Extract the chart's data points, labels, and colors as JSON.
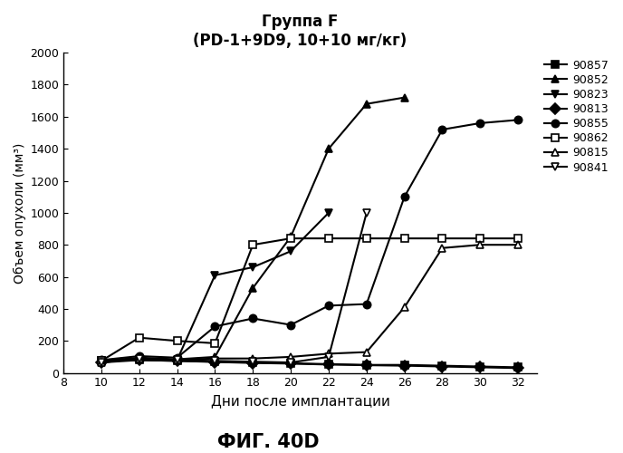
{
  "title_line1": "Группа F",
  "title_line2": "(PD-1+9D9, 10+10 мг/кг)",
  "xlabel": "Дни после имплантации",
  "ylabel": "Объем опухоли (мм³)",
  "footer": "ФИГ. 40D",
  "xlim": [
    8,
    33
  ],
  "ylim": [
    0,
    2000
  ],
  "xticks": [
    8,
    10,
    12,
    14,
    16,
    18,
    20,
    22,
    24,
    26,
    28,
    30,
    32
  ],
  "yticks": [
    0,
    200,
    400,
    600,
    800,
    1000,
    1200,
    1400,
    1600,
    1800,
    2000
  ],
  "series": [
    {
      "label": "90857",
      "marker": "s",
      "fillstyle": "full",
      "x": [
        10,
        12,
        14,
        16,
        18,
        20,
        22,
        24,
        26,
        28,
        30,
        32
      ],
      "y": [
        75,
        80,
        75,
        70,
        65,
        60,
        55,
        50,
        50,
        45,
        40,
        35
      ]
    },
    {
      "label": "90852",
      "marker": "^",
      "fillstyle": "full",
      "x": [
        10,
        12,
        14,
        16,
        18,
        20,
        22,
        24,
        26
      ],
      "y": [
        75,
        95,
        85,
        100,
        530,
        850,
        1400,
        1680,
        1720
      ]
    },
    {
      "label": "90823",
      "marker": "v",
      "fillstyle": "full",
      "x": [
        10,
        12,
        14,
        16,
        18,
        20,
        22
      ],
      "y": [
        70,
        90,
        80,
        610,
        660,
        760,
        1000
      ]
    },
    {
      "label": "90813",
      "marker": "D",
      "fillstyle": "full",
      "x": [
        10,
        12,
        14,
        16,
        18,
        20,
        22,
        24,
        26,
        28,
        30,
        32
      ],
      "y": [
        65,
        80,
        75,
        68,
        62,
        58,
        52,
        48,
        45,
        40,
        35,
        30
      ]
    },
    {
      "label": "90855",
      "marker": "o",
      "fillstyle": "full",
      "x": [
        10,
        12,
        14,
        16,
        18,
        20,
        22,
        24,
        26,
        28,
        30,
        32
      ],
      "y": [
        80,
        105,
        95,
        290,
        340,
        300,
        420,
        430,
        1100,
        1520,
        1560,
        1580
      ]
    },
    {
      "label": "90862",
      "marker": "s",
      "fillstyle": "none",
      "x": [
        10,
        12,
        14,
        16,
        18,
        20,
        22,
        24,
        26,
        28,
        30,
        32
      ],
      "y": [
        75,
        220,
        200,
        185,
        800,
        840,
        840,
        840,
        840,
        840,
        840,
        840
      ]
    },
    {
      "label": "90815",
      "marker": "^",
      "fillstyle": "none",
      "x": [
        10,
        12,
        14,
        16,
        18,
        20,
        22,
        24,
        26,
        28,
        30,
        32
      ],
      "y": [
        65,
        90,
        80,
        90,
        90,
        100,
        120,
        130,
        410,
        780,
        800,
        800
      ]
    },
    {
      "label": "90841",
      "marker": "v",
      "fillstyle": "none",
      "x": [
        10,
        12,
        14,
        16,
        18,
        20,
        22,
        24
      ],
      "y": [
        65,
        90,
        80,
        75,
        70,
        65,
        100,
        1000
      ]
    }
  ]
}
